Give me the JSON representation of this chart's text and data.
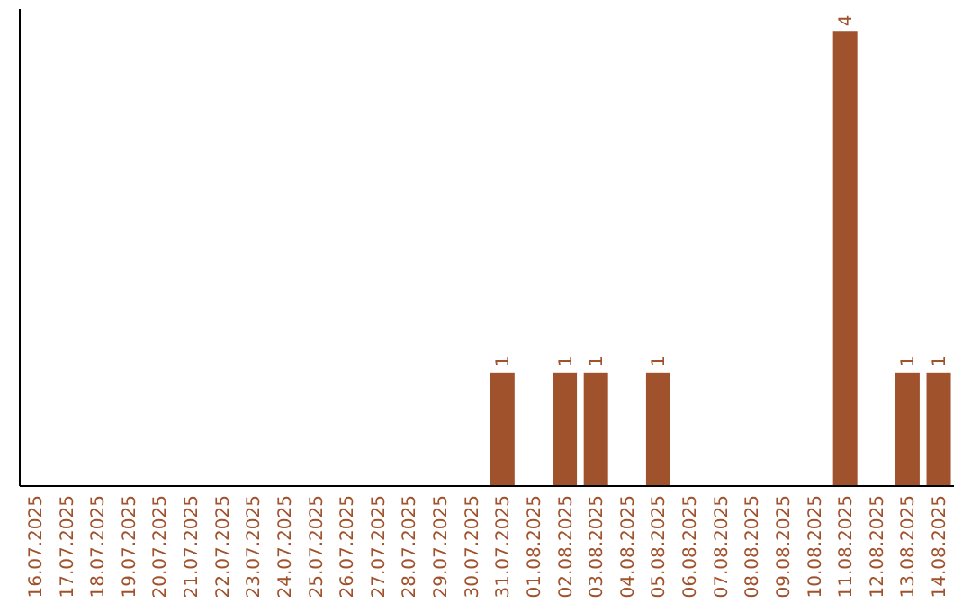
{
  "chart_data": {
    "type": "bar",
    "categories": [
      "16.07.2025",
      "17.07.2025",
      "18.07.2025",
      "19.07.2025",
      "20.07.2025",
      "21.07.2025",
      "22.07.2025",
      "23.07.2025",
      "24.07.2025",
      "25.07.2025",
      "26.07.2025",
      "27.07.2025",
      "28.07.2025",
      "29.07.2025",
      "30.07.2025",
      "31.07.2025",
      "01.08.2025",
      "02.08.2025",
      "03.08.2025",
      "04.08.2025",
      "05.08.2025",
      "06.08.2025",
      "07.08.2025",
      "08.08.2025",
      "09.08.2025",
      "10.08.2025",
      "11.08.2025",
      "12.08.2025",
      "13.08.2025",
      "14.08.2025"
    ],
    "values": [
      null,
      null,
      null,
      null,
      null,
      null,
      null,
      null,
      null,
      null,
      null,
      null,
      null,
      null,
      null,
      1,
      null,
      1,
      1,
      null,
      1,
      null,
      null,
      null,
      null,
      null,
      4,
      null,
      1,
      1
    ],
    "color": "#a0522d",
    "ylim": [
      0,
      4.2
    ],
    "tick_labels": "x",
    "data_labels": true
  }
}
